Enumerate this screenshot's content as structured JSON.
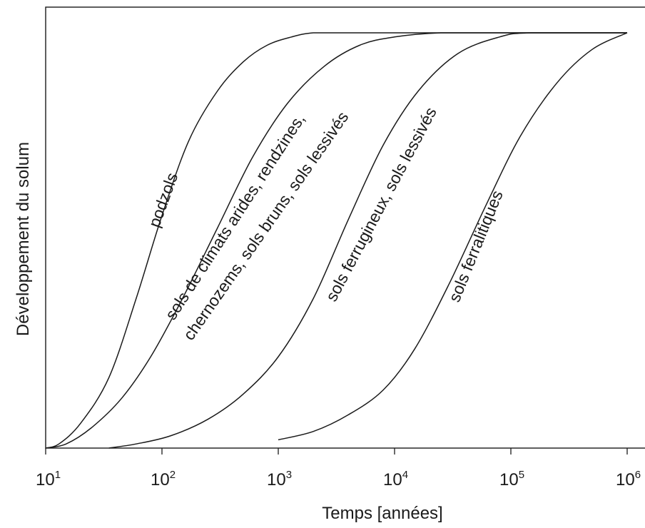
{
  "chart_data": {
    "type": "line",
    "title": "",
    "xlabel": "Temps [années]",
    "ylabel": "Développement du solum",
    "x_scale": "log",
    "xlim": [
      10,
      1000000
    ],
    "ylim": [
      0,
      1
    ],
    "grid": false,
    "x_ticks": [
      {
        "base": "10",
        "exp": "1",
        "value": 10
      },
      {
        "base": "10",
        "exp": "2",
        "value": 100
      },
      {
        "base": "10",
        "exp": "3",
        "value": 1000
      },
      {
        "base": "10",
        "exp": "4",
        "value": 10000
      },
      {
        "base": "10",
        "exp": "5",
        "value": 100000
      },
      {
        "base": "10",
        "exp": "6",
        "value": 1000000
      }
    ],
    "series": [
      {
        "label": "podzols",
        "x": [
          10,
          13,
          20,
          35,
          60,
          100,
          170,
          300,
          500,
          800,
          1300,
          2000,
          4000,
          10000,
          100000,
          1000000
        ],
        "y": [
          0,
          0.01,
          0.06,
          0.17,
          0.36,
          0.56,
          0.74,
          0.86,
          0.93,
          0.97,
          0.99,
          1.0,
          1.0,
          1.0,
          1.0,
          1.0
        ]
      },
      {
        "label": "sols de climats arides, rendzines,",
        "x": [
          10,
          15,
          25,
          45,
          80,
          150,
          300,
          600,
          1200,
          2500,
          5000,
          10000,
          25000,
          100000,
          1000000
        ],
        "y": [
          0,
          0.01,
          0.05,
          0.12,
          0.22,
          0.36,
          0.53,
          0.7,
          0.83,
          0.92,
          0.97,
          0.99,
          1.0,
          1.0,
          1.0
        ]
      },
      {
        "label": "chernozems, sols bruns, sols lessivés",
        "x": [
          10,
          15,
          25,
          45,
          80,
          150,
          300,
          600,
          1200,
          2500,
          5000,
          10000,
          25000,
          100000,
          1000000
        ],
        "y": [
          0,
          0.01,
          0.05,
          0.12,
          0.22,
          0.36,
          0.53,
          0.7,
          0.83,
          0.92,
          0.97,
          0.99,
          1.0,
          1.0,
          1.0
        ]
      },
      {
        "label": "sols ferrugineux, sols lessivés",
        "x": [
          35,
          60,
          120,
          250,
          500,
          1000,
          2000,
          4000,
          8000,
          16000,
          35000,
          80000,
          150000,
          1000000
        ],
        "y": [
          0,
          0.01,
          0.03,
          0.07,
          0.13,
          0.22,
          0.36,
          0.55,
          0.73,
          0.86,
          0.95,
          0.99,
          1.0,
          1.0
        ]
      },
      {
        "label": "sols ferralitiques",
        "x": [
          1000,
          2000,
          4000,
          8000,
          15000,
          30000,
          60000,
          120000,
          250000,
          500000,
          1000000
        ],
        "y": [
          0.02,
          0.04,
          0.08,
          0.14,
          0.24,
          0.4,
          0.58,
          0.75,
          0.88,
          0.96,
          1.0
        ]
      }
    ]
  }
}
